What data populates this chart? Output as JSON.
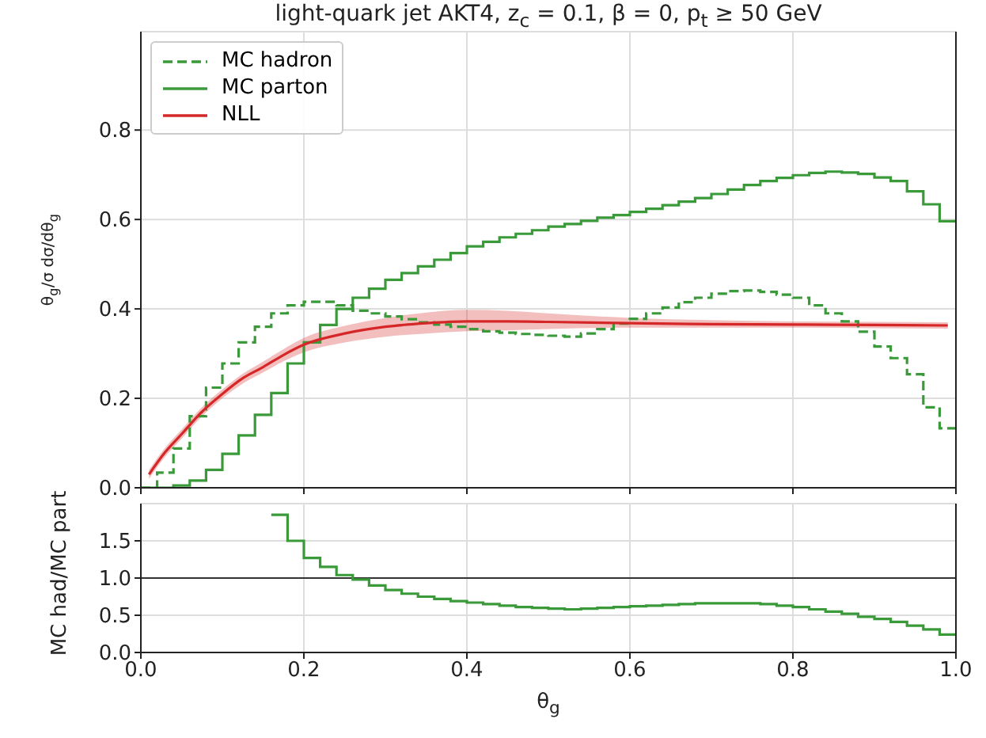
{
  "chart_data": [
    {
      "type": "histogram",
      "title": "light-quark jet AKT4, z$_{c}$ = 0.1, β = 0, p$_{t}$ ≥ 50 GeV",
      "ylabel": "θ$_{g}$/σ dσ/dθ$_{g}$",
      "xlim": [
        0,
        1
      ],
      "ylim": [
        0,
        1.02
      ],
      "xticks": [
        0,
        0.2,
        0.4,
        0.6,
        0.8,
        1
      ],
      "yticks": [
        {
          "value": 0,
          "label": "0.0"
        },
        {
          "value": 0.2,
          "label": "0.2"
        },
        {
          "value": 0.4,
          "label": "0.4"
        },
        {
          "value": 0.6,
          "label": "0.6"
        },
        {
          "value": 0.8,
          "label": "0.8"
        }
      ],
      "tick_labels": "y",
      "grid": true,
      "legend": "top left",
      "series": [
        {
          "name": "MC hadron",
          "color": "#3a9a3a",
          "line_style": "dashed",
          "bins": [
            0,
            0.02,
            0.04,
            0.06,
            0.08,
            0.1,
            0.12,
            0.14,
            0.16,
            0.18,
            0.2,
            0.22,
            0.24,
            0.26,
            0.28,
            0.3,
            0.32,
            0.34,
            0.36,
            0.38,
            0.4,
            0.42,
            0.44,
            0.46,
            0.48,
            0.5,
            0.52,
            0.54,
            0.56,
            0.58,
            0.6,
            0.62,
            0.64,
            0.66,
            0.68,
            0.7,
            0.72,
            0.74,
            0.76,
            0.78,
            0.8,
            0.82,
            0.84,
            0.86,
            0.88,
            0.9,
            0.92,
            0.94,
            0.96,
            0.98,
            1
          ],
          "values": [
            0,
            0.034,
            0.088,
            0.16,
            0.224,
            0.278,
            0.325,
            0.36,
            0.39,
            0.408,
            0.416,
            0.416,
            0.408,
            0.396,
            0.39,
            0.383,
            0.377,
            0.37,
            0.365,
            0.36,
            0.355,
            0.35,
            0.347,
            0.344,
            0.342,
            0.34,
            0.338,
            0.345,
            0.355,
            0.367,
            0.378,
            0.39,
            0.403,
            0.415,
            0.425,
            0.434,
            0.44,
            0.441,
            0.438,
            0.432,
            0.425,
            0.408,
            0.39,
            0.372,
            0.349,
            0.316,
            0.29,
            0.254,
            0.18,
            0.133
          ]
        },
        {
          "name": "MC parton",
          "color": "#3a9a3a",
          "line_style": "solid",
          "bins": [
            0,
            0.02,
            0.04,
            0.06,
            0.08,
            0.1,
            0.12,
            0.14,
            0.16,
            0.18,
            0.2,
            0.22,
            0.24,
            0.26,
            0.28,
            0.3,
            0.32,
            0.34,
            0.36,
            0.38,
            0.4,
            0.42,
            0.44,
            0.46,
            0.48,
            0.5,
            0.52,
            0.54,
            0.56,
            0.58,
            0.6,
            0.62,
            0.64,
            0.66,
            0.68,
            0.7,
            0.72,
            0.74,
            0.76,
            0.78,
            0.8,
            0.82,
            0.84,
            0.86,
            0.88,
            0.9,
            0.92,
            0.94,
            0.96,
            0.98,
            1
          ],
          "values": [
            0,
            0,
            0.005,
            0.016,
            0.04,
            0.076,
            0.117,
            0.163,
            0.212,
            0.278,
            0.325,
            0.364,
            0.4,
            0.425,
            0.445,
            0.465,
            0.48,
            0.495,
            0.51,
            0.525,
            0.54,
            0.55,
            0.56,
            0.568,
            0.576,
            0.584,
            0.59,
            0.597,
            0.604,
            0.61,
            0.617,
            0.624,
            0.632,
            0.64,
            0.648,
            0.657,
            0.667,
            0.677,
            0.686,
            0.693,
            0.699,
            0.704,
            0.707,
            0.705,
            0.702,
            0.694,
            0.686,
            0.663,
            0.634,
            0.596
          ]
        },
        {
          "name": "NLL",
          "type": "line",
          "color": "#d62728",
          "line_style": "solid",
          "x": [
            0.01,
            0.03,
            0.05,
            0.075,
            0.1,
            0.125,
            0.15,
            0.175,
            0.2,
            0.25,
            0.3,
            0.35,
            0.4,
            0.45,
            0.5,
            0.6,
            0.7,
            0.8,
            0.9,
            0.99
          ],
          "values": [
            0.03,
            0.08,
            0.12,
            0.17,
            0.21,
            0.245,
            0.27,
            0.297,
            0.32,
            0.345,
            0.36,
            0.368,
            0.372,
            0.372,
            0.371,
            0.368,
            0.366,
            0.365,
            0.364,
            0.363
          ],
          "lower": [
            0.02,
            0.07,
            0.11,
            0.16,
            0.2,
            0.233,
            0.258,
            0.283,
            0.303,
            0.325,
            0.338,
            0.345,
            0.35,
            0.352,
            0.355,
            0.358,
            0.358,
            0.358,
            0.357,
            0.356
          ],
          "upper": [
            0.04,
            0.09,
            0.13,
            0.18,
            0.22,
            0.255,
            0.282,
            0.31,
            0.335,
            0.362,
            0.38,
            0.392,
            0.398,
            0.396,
            0.39,
            0.38,
            0.375,
            0.372,
            0.371,
            0.37
          ]
        }
      ]
    },
    {
      "type": "histogram",
      "xlabel": "θ$_{g}$",
      "ylabel": "MC had/MC part",
      "xlim": [
        0,
        1
      ],
      "ylim": [
        0,
        2
      ],
      "xticks": [
        {
          "value": 0,
          "label": "0.0"
        },
        {
          "value": 0.2,
          "label": "0.2"
        },
        {
          "value": 0.4,
          "label": "0.4"
        },
        {
          "value": 0.6,
          "label": "0.6"
        },
        {
          "value": 0.8,
          "label": "0.8"
        },
        {
          "value": 1,
          "label": "1.0"
        }
      ],
      "yticks": [
        {
          "value": 0,
          "label": "0.0"
        },
        {
          "value": 0.5,
          "label": "0.5"
        },
        {
          "value": 1,
          "label": "1.0"
        },
        {
          "value": 1.5,
          "label": "1.5"
        }
      ],
      "grid": true,
      "ref_lines": [
        {
          "axis": "y",
          "value": 1,
          "color": "#333333"
        }
      ],
      "color": "#3a9a3a",
      "bins": [
        0.16,
        0.18,
        0.2,
        0.22,
        0.24,
        0.26,
        0.28,
        0.3,
        0.32,
        0.34,
        0.36,
        0.38,
        0.4,
        0.42,
        0.44,
        0.46,
        0.48,
        0.5,
        0.52,
        0.54,
        0.56,
        0.58,
        0.6,
        0.62,
        0.64,
        0.66,
        0.68,
        0.7,
        0.72,
        0.74,
        0.76,
        0.78,
        0.8,
        0.82,
        0.84,
        0.86,
        0.88,
        0.9,
        0.92,
        0.94,
        0.96,
        0.98,
        1
      ],
      "values": [
        1.85,
        1.5,
        1.27,
        1.15,
        1.04,
        0.98,
        0.9,
        0.84,
        0.79,
        0.75,
        0.72,
        0.69,
        0.67,
        0.65,
        0.63,
        0.61,
        0.6,
        0.59,
        0.58,
        0.59,
        0.6,
        0.61,
        0.62,
        0.63,
        0.64,
        0.65,
        0.66,
        0.66,
        0.66,
        0.66,
        0.65,
        0.63,
        0.61,
        0.58,
        0.55,
        0.52,
        0.48,
        0.45,
        0.41,
        0.36,
        0.31,
        0.24
      ]
    }
  ]
}
